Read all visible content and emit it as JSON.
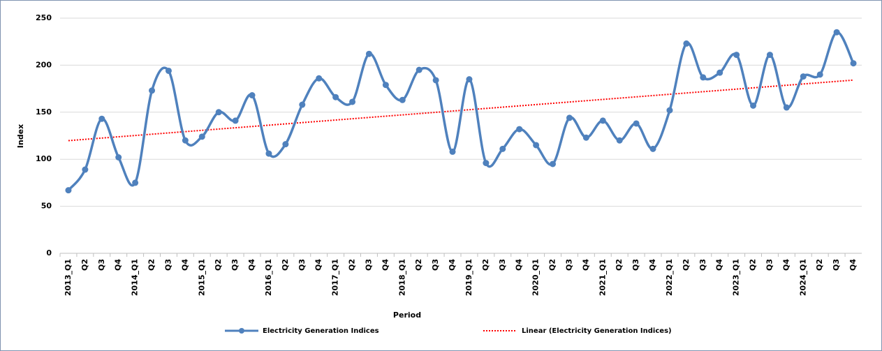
{
  "chart_data": {
    "type": "line",
    "x_label": "Period",
    "y_label": "Index",
    "categories": [
      "2013_Q1",
      "Q2",
      "Q3",
      "Q4",
      "2014_Q1",
      "Q2",
      "Q3",
      "Q4",
      "2015_Q1",
      "Q2",
      "Q3",
      "Q4",
      "2016_Q1",
      "Q2",
      "Q3",
      "Q4",
      "2017_Q1",
      "Q2",
      "Q3",
      "Q4",
      "2018_Q1",
      "Q2",
      "Q3",
      "Q4",
      "2019_Q1",
      "Q2",
      "Q3",
      "Q4",
      "2020_Q1",
      "Q2",
      "Q3",
      "Q4",
      "2021_Q1",
      "Q2",
      "Q3",
      "Q4",
      "2022_Q1",
      "Q2",
      "Q3",
      "Q4",
      "2023_Q1",
      "Q2",
      "Q3",
      "Q4",
      "2024_Q1",
      "Q2",
      "Q3",
      "Q4"
    ],
    "series": [
      {
        "name": "Electricity Generation Indices",
        "color": "#4f81bd",
        "values": [
          67,
          89,
          143,
          102,
          75,
          173,
          194,
          120,
          124,
          150,
          141,
          168,
          106,
          116,
          158,
          186,
          166,
          161,
          212,
          179,
          163,
          195,
          184,
          108,
          185,
          96,
          111,
          132,
          115,
          95,
          144,
          123,
          141,
          120,
          138,
          111,
          152,
          223,
          187,
          192,
          211,
          157,
          211,
          155,
          188,
          190,
          235,
          202
        ]
      }
    ],
    "trendline": {
      "name": "Linear (Electricity Generation Indices)",
      "color": "#ff0000"
    },
    "ylim": [
      0,
      250
    ],
    "yticks": [
      0,
      50,
      100,
      150,
      200,
      250
    ],
    "grid": true,
    "legend": "bottom"
  }
}
